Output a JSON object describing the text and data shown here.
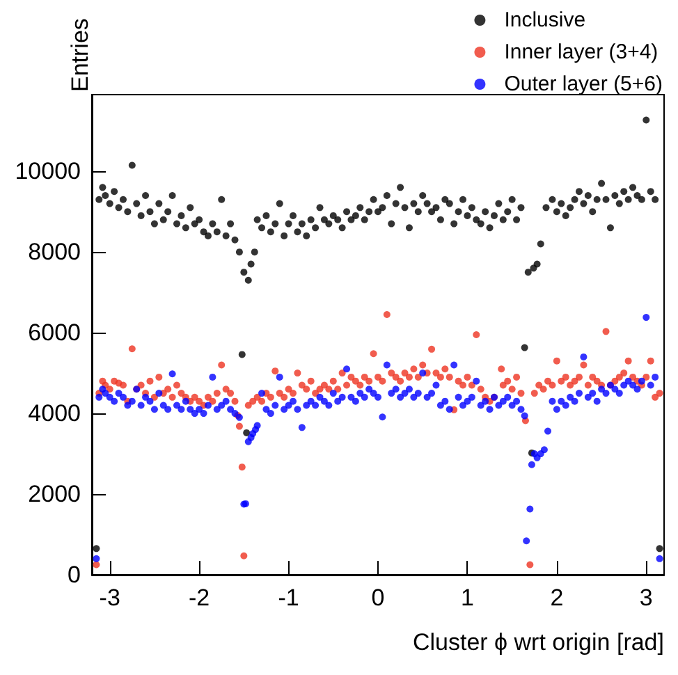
{
  "chart_data": {
    "type": "scatter",
    "xlabel": "Cluster ϕ wrt origin [rad]",
    "ylabel": "Entries",
    "xlim": [
      -3.2,
      3.2
    ],
    "xticks": [
      -3,
      -2,
      -1,
      0,
      1,
      2,
      3
    ],
    "ylim": [
      0,
      11900
    ],
    "yticks": [
      0,
      2000,
      4000,
      6000,
      8000,
      10000
    ],
    "grid": false,
    "legend": "top right",
    "marker": "circle",
    "series": [
      {
        "name": "Inclusive",
        "color": "#000000",
        "x": [
          -3.15,
          -3.12,
          -3.08,
          -3.05,
          -3.0,
          -2.95,
          -2.9,
          -2.85,
          -2.8,
          -2.75,
          -2.7,
          -2.65,
          -2.6,
          -2.55,
          -2.5,
          -2.45,
          -2.4,
          -2.35,
          -2.3,
          -2.25,
          -2.2,
          -2.15,
          -2.1,
          -2.05,
          -2.0,
          -1.95,
          -1.9,
          -1.85,
          -1.8,
          -1.75,
          -1.7,
          -1.65,
          -1.6,
          -1.55,
          -1.52,
          -1.5,
          -1.47,
          -1.45,
          -1.42,
          -1.38,
          -1.35,
          -1.3,
          -1.25,
          -1.2,
          -1.15,
          -1.1,
          -1.05,
          -1.0,
          -0.95,
          -0.9,
          -0.85,
          -0.8,
          -0.75,
          -0.7,
          -0.65,
          -0.6,
          -0.55,
          -0.5,
          -0.45,
          -0.4,
          -0.35,
          -0.3,
          -0.25,
          -0.2,
          -0.15,
          -0.1,
          -0.05,
          0.0,
          0.05,
          0.1,
          0.15,
          0.2,
          0.25,
          0.3,
          0.35,
          0.4,
          0.45,
          0.5,
          0.55,
          0.6,
          0.65,
          0.7,
          0.75,
          0.8,
          0.85,
          0.9,
          0.95,
          1.0,
          1.05,
          1.1,
          1.15,
          1.2,
          1.25,
          1.3,
          1.35,
          1.4,
          1.45,
          1.5,
          1.55,
          1.6,
          1.64,
          1.68,
          1.72,
          1.74,
          1.78,
          1.82,
          1.88,
          1.95,
          2.0,
          2.05,
          2.1,
          2.15,
          2.2,
          2.25,
          2.3,
          2.35,
          2.4,
          2.45,
          2.5,
          2.55,
          2.6,
          2.65,
          2.7,
          2.75,
          2.8,
          2.85,
          2.9,
          2.95,
          3.0,
          3.05,
          3.1,
          3.15
        ],
        "values": [
          650,
          9300,
          9600,
          9400,
          9200,
          9500,
          9100,
          9300,
          9000,
          10150,
          9200,
          8900,
          9400,
          9000,
          8700,
          9200,
          8800,
          9000,
          9400,
          8700,
          8900,
          8600,
          9100,
          8700,
          8800,
          8500,
          8400,
          8700,
          8500,
          9300,
          8400,
          8700,
          8300,
          8000,
          5460,
          7500,
          3520,
          7300,
          7700,
          8000,
          8800,
          8600,
          8900,
          8500,
          8700,
          9200,
          8400,
          8700,
          8900,
          8500,
          8700,
          8400,
          8800,
          8600,
          9100,
          8800,
          8700,
          8900,
          8800,
          8600,
          9000,
          8800,
          8900,
          9100,
          8800,
          9000,
          9300,
          9000,
          9100,
          9400,
          8700,
          9200,
          9600,
          9100,
          8600,
          9200,
          9000,
          9400,
          9200,
          9000,
          9100,
          8800,
          9300,
          9200,
          8700,
          9000,
          9300,
          8900,
          9100,
          8800,
          8700,
          9000,
          8600,
          8900,
          9200,
          8800,
          9000,
          9300,
          8800,
          9100,
          5630,
          7500,
          3020,
          7600,
          7700,
          8200,
          9100,
          9300,
          9000,
          9200,
          8900,
          9100,
          9300,
          9500,
          9200,
          9400,
          9000,
          9300,
          9700,
          9300,
          8600,
          9400,
          9200,
          9500,
          9300,
          9600,
          9400,
          9300,
          11270,
          9500,
          9300,
          650
        ]
      },
      {
        "name": "Inner layer (3+4)",
        "color": "#ee3322",
        "x": [
          -3.15,
          -3.12,
          -3.08,
          -3.05,
          -3.0,
          -2.95,
          -2.9,
          -2.85,
          -2.8,
          -2.75,
          -2.7,
          -2.65,
          -2.6,
          -2.55,
          -2.5,
          -2.45,
          -2.4,
          -2.35,
          -2.3,
          -2.25,
          -2.2,
          -2.15,
          -2.1,
          -2.05,
          -2.0,
          -1.95,
          -1.9,
          -1.85,
          -1.8,
          -1.75,
          -1.7,
          -1.65,
          -1.6,
          -1.57,
          -1.55,
          -1.52,
          -1.5,
          -1.45,
          -1.4,
          -1.35,
          -1.3,
          -1.25,
          -1.2,
          -1.15,
          -1.1,
          -1.05,
          -1.0,
          -0.95,
          -0.9,
          -0.85,
          -0.8,
          -0.75,
          -0.7,
          -0.65,
          -0.6,
          -0.55,
          -0.5,
          -0.45,
          -0.4,
          -0.35,
          -0.3,
          -0.25,
          -0.2,
          -0.15,
          -0.1,
          -0.05,
          0.0,
          0.05,
          0.1,
          0.15,
          0.2,
          0.25,
          0.3,
          0.35,
          0.4,
          0.45,
          0.5,
          0.55,
          0.6,
          0.65,
          0.7,
          0.75,
          0.8,
          0.85,
          0.9,
          0.95,
          1.0,
          1.05,
          1.1,
          1.15,
          1.2,
          1.25,
          1.3,
          1.38,
          1.4,
          1.45,
          1.5,
          1.55,
          1.6,
          1.65,
          1.7,
          1.75,
          1.8,
          1.85,
          1.9,
          1.95,
          2.0,
          2.05,
          2.1,
          2.15,
          2.2,
          2.25,
          2.3,
          2.35,
          2.4,
          2.45,
          2.5,
          2.55,
          2.6,
          2.65,
          2.7,
          2.75,
          2.8,
          2.85,
          2.9,
          2.95,
          3.0,
          3.05,
          3.1,
          3.15
        ],
        "values": [
          250,
          4500,
          4800,
          4700,
          4600,
          4800,
          4750,
          4700,
          4300,
          5600,
          4600,
          4700,
          4500,
          4800,
          4400,
          4900,
          4500,
          4600,
          4400,
          4700,
          4500,
          4400,
          4300,
          4400,
          4300,
          4200,
          4400,
          4300,
          4500,
          5200,
          4600,
          4500,
          4300,
          3950,
          3680,
          2670,
          470,
          4200,
          4300,
          4400,
          4300,
          4500,
          4400,
          5050,
          4500,
          4400,
          4600,
          4500,
          5000,
          4700,
          4600,
          4800,
          4500,
          4600,
          4700,
          4600,
          4800,
          4600,
          5000,
          4700,
          4900,
          4800,
          4700,
          4900,
          4800,
          5480,
          4900,
          4800,
          6450,
          5000,
          4900,
          4800,
          5000,
          4900,
          5100,
          4900,
          5200,
          5000,
          5590,
          5000,
          4900,
          5100,
          4900,
          4090,
          4800,
          4700,
          4900,
          4700,
          5950,
          4600,
          4400,
          4300,
          4400,
          5100,
          4700,
          4800,
          4600,
          4900,
          4500,
          3820,
          250,
          4500,
          4700,
          4600,
          4800,
          4700,
          5300,
          4800,
          4900,
          4700,
          4800,
          4900,
          5200,
          4700,
          4900,
          4800,
          4700,
          6030,
          4700,
          4800,
          4900,
          5000,
          5300,
          4900,
          4800,
          4700,
          4900,
          5300,
          4400,
          4500
        ]
      },
      {
        "name": "Outer layer (5+6)",
        "color": "#0000ff",
        "x": [
          -3.15,
          -3.12,
          -3.08,
          -3.05,
          -3.0,
          -2.95,
          -2.9,
          -2.85,
          -2.8,
          -2.75,
          -2.7,
          -2.65,
          -2.6,
          -2.55,
          -2.5,
          -2.45,
          -2.4,
          -2.35,
          -2.3,
          -2.25,
          -2.2,
          -2.15,
          -2.1,
          -2.05,
          -2.0,
          -1.95,
          -1.9,
          -1.85,
          -1.8,
          -1.75,
          -1.7,
          -1.65,
          -1.6,
          -1.55,
          -1.5,
          -1.48,
          -1.45,
          -1.42,
          -1.4,
          -1.37,
          -1.35,
          -1.3,
          -1.25,
          -1.2,
          -1.15,
          -1.1,
          -1.05,
          -1.0,
          -0.95,
          -0.9,
          -0.85,
          -0.8,
          -0.75,
          -0.7,
          -0.65,
          -0.6,
          -0.55,
          -0.5,
          -0.45,
          -0.4,
          -0.35,
          -0.3,
          -0.25,
          -0.2,
          -0.15,
          -0.1,
          -0.05,
          0.0,
          0.05,
          0.1,
          0.15,
          0.2,
          0.25,
          0.3,
          0.35,
          0.4,
          0.45,
          0.5,
          0.55,
          0.6,
          0.65,
          0.7,
          0.75,
          0.8,
          0.85,
          0.9,
          0.95,
          1.0,
          1.05,
          1.1,
          1.15,
          1.2,
          1.25,
          1.3,
          1.35,
          1.4,
          1.45,
          1.5,
          1.55,
          1.6,
          1.64,
          1.66,
          1.7,
          1.72,
          1.75,
          1.78,
          1.82,
          1.86,
          1.9,
          1.95,
          2.0,
          2.05,
          2.1,
          2.15,
          2.2,
          2.25,
          2.3,
          2.35,
          2.4,
          2.45,
          2.5,
          2.55,
          2.6,
          2.65,
          2.7,
          2.75,
          2.8,
          2.85,
          2.9,
          2.95,
          3.0,
          3.05,
          3.1,
          3.15
        ],
        "values": [
          400,
          4400,
          4600,
          4500,
          4400,
          4300,
          4500,
          4400,
          4200,
          4300,
          4600,
          4200,
          4400,
          4300,
          4100,
          4500,
          4200,
          4100,
          4980,
          4200,
          4100,
          4300,
          4100,
          4000,
          4100,
          4000,
          4200,
          4900,
          4100,
          4200,
          4300,
          4100,
          4000,
          3900,
          1750,
          1760,
          3300,
          3400,
          3500,
          3600,
          3700,
          4500,
          4100,
          4000,
          4200,
          4900,
          4100,
          4200,
          4300,
          4100,
          3650,
          4200,
          4300,
          4200,
          4400,
          4300,
          4200,
          4500,
          4300,
          4400,
          5100,
          4400,
          4300,
          4500,
          4400,
          4600,
          4500,
          4400,
          3910,
          5200,
          4500,
          4600,
          4400,
          4500,
          4600,
          4400,
          4500,
          5000,
          4400,
          4500,
          4700,
          4200,
          4300,
          4100,
          5200,
          4400,
          4200,
          4300,
          4400,
          4800,
          4200,
          4300,
          4100,
          4400,
          4200,
          4300,
          4400,
          4200,
          4300,
          4100,
          3940,
          840,
          1630,
          2730,
          3000,
          2900,
          3000,
          3100,
          3560,
          4300,
          4100,
          4300,
          4200,
          4400,
          4300,
          4500,
          5400,
          4400,
          4500,
          4300,
          4600,
          4500,
          4700,
          4600,
          4500,
          4700,
          4800,
          4700,
          4600,
          4800,
          6380,
          4700,
          4900,
          400
        ]
      }
    ]
  }
}
